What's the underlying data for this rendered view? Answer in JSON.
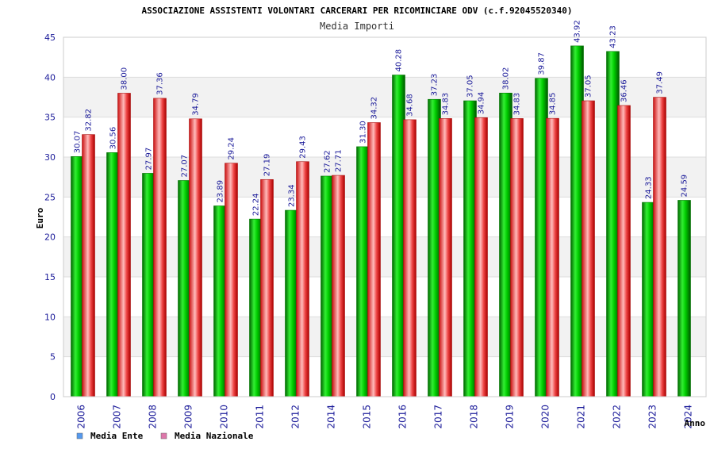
{
  "chart_data": {
    "type": "bar",
    "title": "ASSOCIAZIONE ASSISTENTI VOLONTARI CARCERARI PER RICOMINCIARE ODV (c.f.92045520340)",
    "subtitle": "Media Importi",
    "xlabel": "Anno",
    "ylabel": "Euro",
    "ylim": [
      0,
      45
    ],
    "yticks": [
      0,
      5,
      10,
      15,
      20,
      25,
      30,
      35,
      40,
      45
    ],
    "grid": true,
    "legend_position": "bottom-left",
    "categories": [
      "2006",
      "2007",
      "2008",
      "2009",
      "2010",
      "2011",
      "2012",
      "2014",
      "2015",
      "2016",
      "2017",
      "2018",
      "2019",
      "2020",
      "2021",
      "2022",
      "2023",
      "2024"
    ],
    "series": [
      {
        "name": "Media Ente",
        "color": "#00aa00",
        "legend_color": "#5599ee",
        "values": [
          30.07,
          30.56,
          27.97,
          27.07,
          23.89,
          22.24,
          23.34,
          27.62,
          31.3,
          40.28,
          37.23,
          37.05,
          38.02,
          39.87,
          43.92,
          43.23,
          24.33,
          24.59
        ],
        "labels": [
          "30.07",
          "30.56",
          "27.97",
          "27.07",
          "23.89",
          "22.24",
          "23.34",
          "27.62",
          "31.30",
          "40.28",
          "37.23",
          "37.05",
          "38.02",
          "39.87",
          "43.92",
          "43.23",
          "24.33",
          "24.59"
        ]
      },
      {
        "name": "Media Nazionale",
        "color": "#ee2222",
        "legend_color": "#dd77aa",
        "values": [
          32.82,
          38.0,
          37.36,
          34.79,
          29.24,
          27.19,
          29.43,
          27.71,
          34.32,
          34.68,
          34.83,
          34.94,
          34.83,
          34.85,
          37.05,
          36.46,
          37.49,
          null
        ],
        "labels": [
          "32.82",
          "38.00",
          "37.36",
          "34.79",
          "29.24",
          "27.19",
          "29.43",
          "27.71",
          "34.32",
          "34.68",
          "34.83",
          "34.94",
          "34.83",
          "34.85",
          "37.05",
          "36.46",
          "37.49",
          ""
        ]
      }
    ]
  }
}
